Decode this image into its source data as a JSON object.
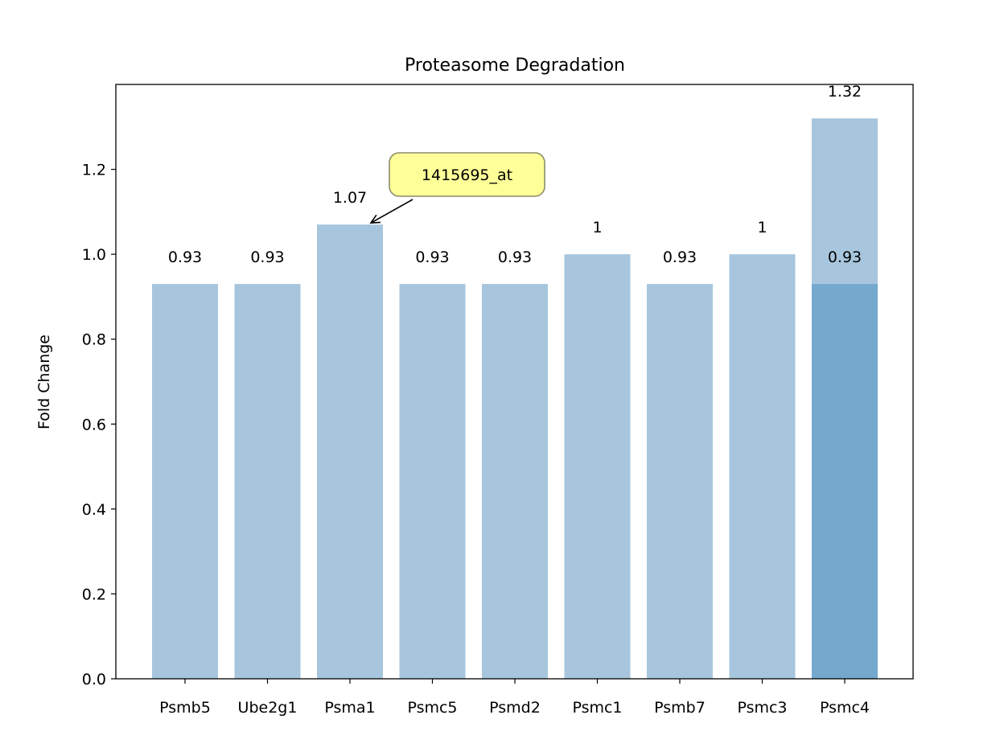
{
  "chart_data": {
    "type": "bar",
    "title": "Proteasome Degradation",
    "xlabel": "",
    "ylabel": "Fold Change",
    "ylim": [
      0,
      1.4
    ],
    "yticks": [
      "0.0",
      "0.2",
      "0.4",
      "0.6",
      "0.8",
      "1.0",
      "1.2"
    ],
    "grid": false,
    "categories": [
      "Psmb5",
      "Ube2g1",
      "Psma1",
      "Psmc5",
      "Psmd2",
      "Psmc1",
      "Psmb7",
      "Psmc3",
      "Psmc4"
    ],
    "values": [
      0.93,
      0.93,
      1.07,
      0.93,
      0.93,
      1.0,
      0.93,
      1.0,
      1.32
    ],
    "value_labels": [
      "0.93",
      "0.93",
      "1.07",
      "0.93",
      "0.93",
      "1",
      "0.93",
      "1",
      "1.32"
    ],
    "overlay_bars": [
      {
        "category": "Psmc4",
        "value": 0.93,
        "label": "0.93"
      }
    ],
    "annotation": {
      "text": "1415695_at",
      "target_category": "Psma1",
      "target_value": 1.07
    },
    "colors": {
      "bar": "#a7c6dd",
      "overlay_bar": "#74a8cd",
      "annotation_fill": "#ffff99",
      "annotation_edge": "#8c8c6a"
    }
  }
}
